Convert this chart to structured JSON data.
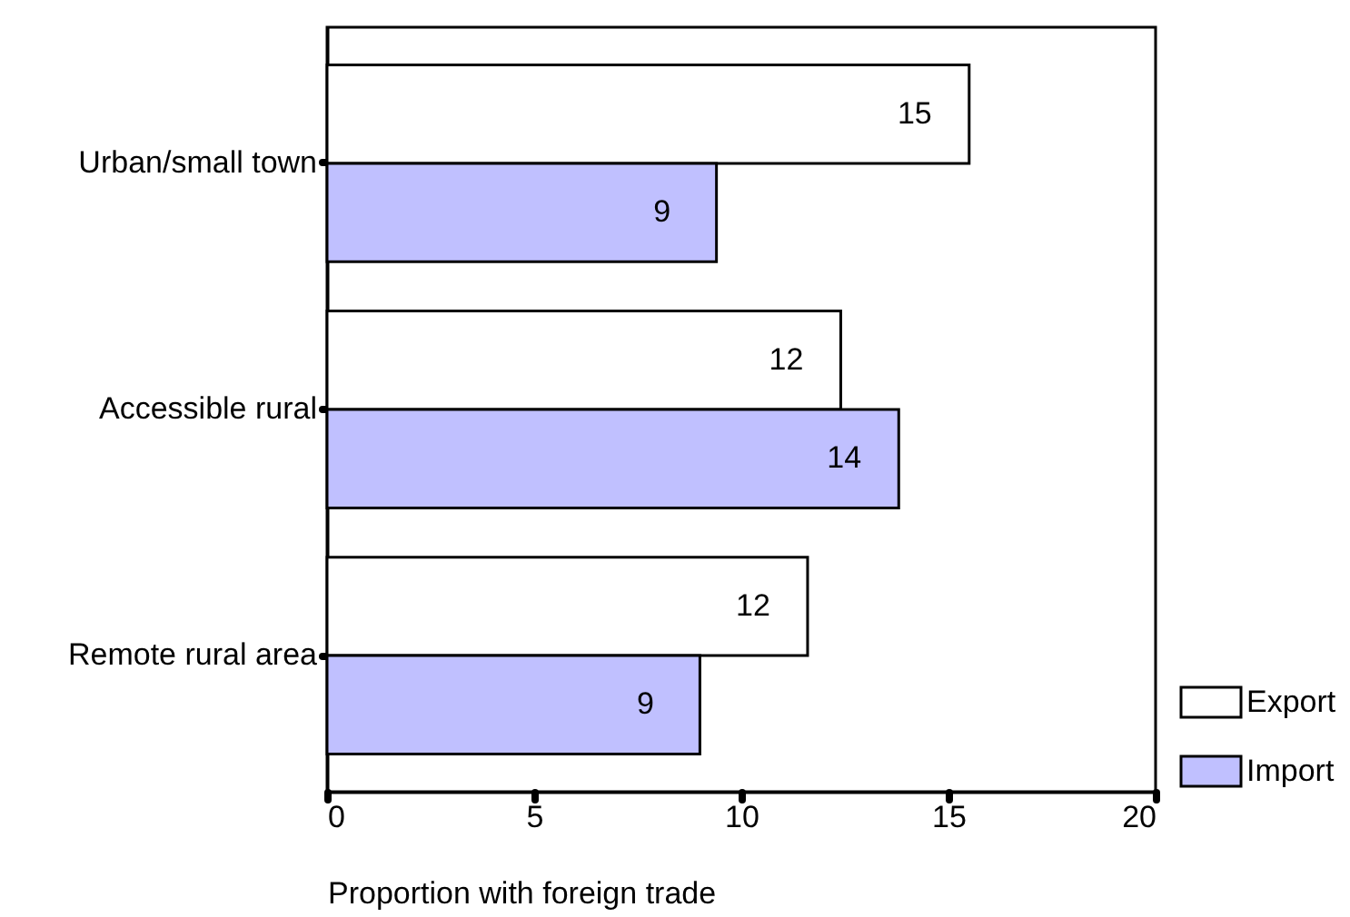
{
  "chart_data": {
    "type": "bar",
    "orientation": "horizontal",
    "xlabel": "Proportion with foreign trade",
    "categories": [
      "Urban/small town",
      "Accessible rural",
      "Remote rural area"
    ],
    "series": [
      {
        "name": "Export",
        "color": "#ffffff",
        "values": [
          15.5,
          12.4,
          11.6
        ],
        "value_labels": [
          "15",
          "12",
          "12"
        ]
      },
      {
        "name": "Import",
        "color": "#c0c0ff",
        "values": [
          9.4,
          13.8,
          9.0
        ],
        "value_labels": [
          "9",
          "14",
          "9"
        ]
      }
    ],
    "xlim": [
      0,
      20
    ],
    "xticks": [
      0,
      5,
      10,
      15,
      20
    ],
    "legend": "bottom right"
  }
}
